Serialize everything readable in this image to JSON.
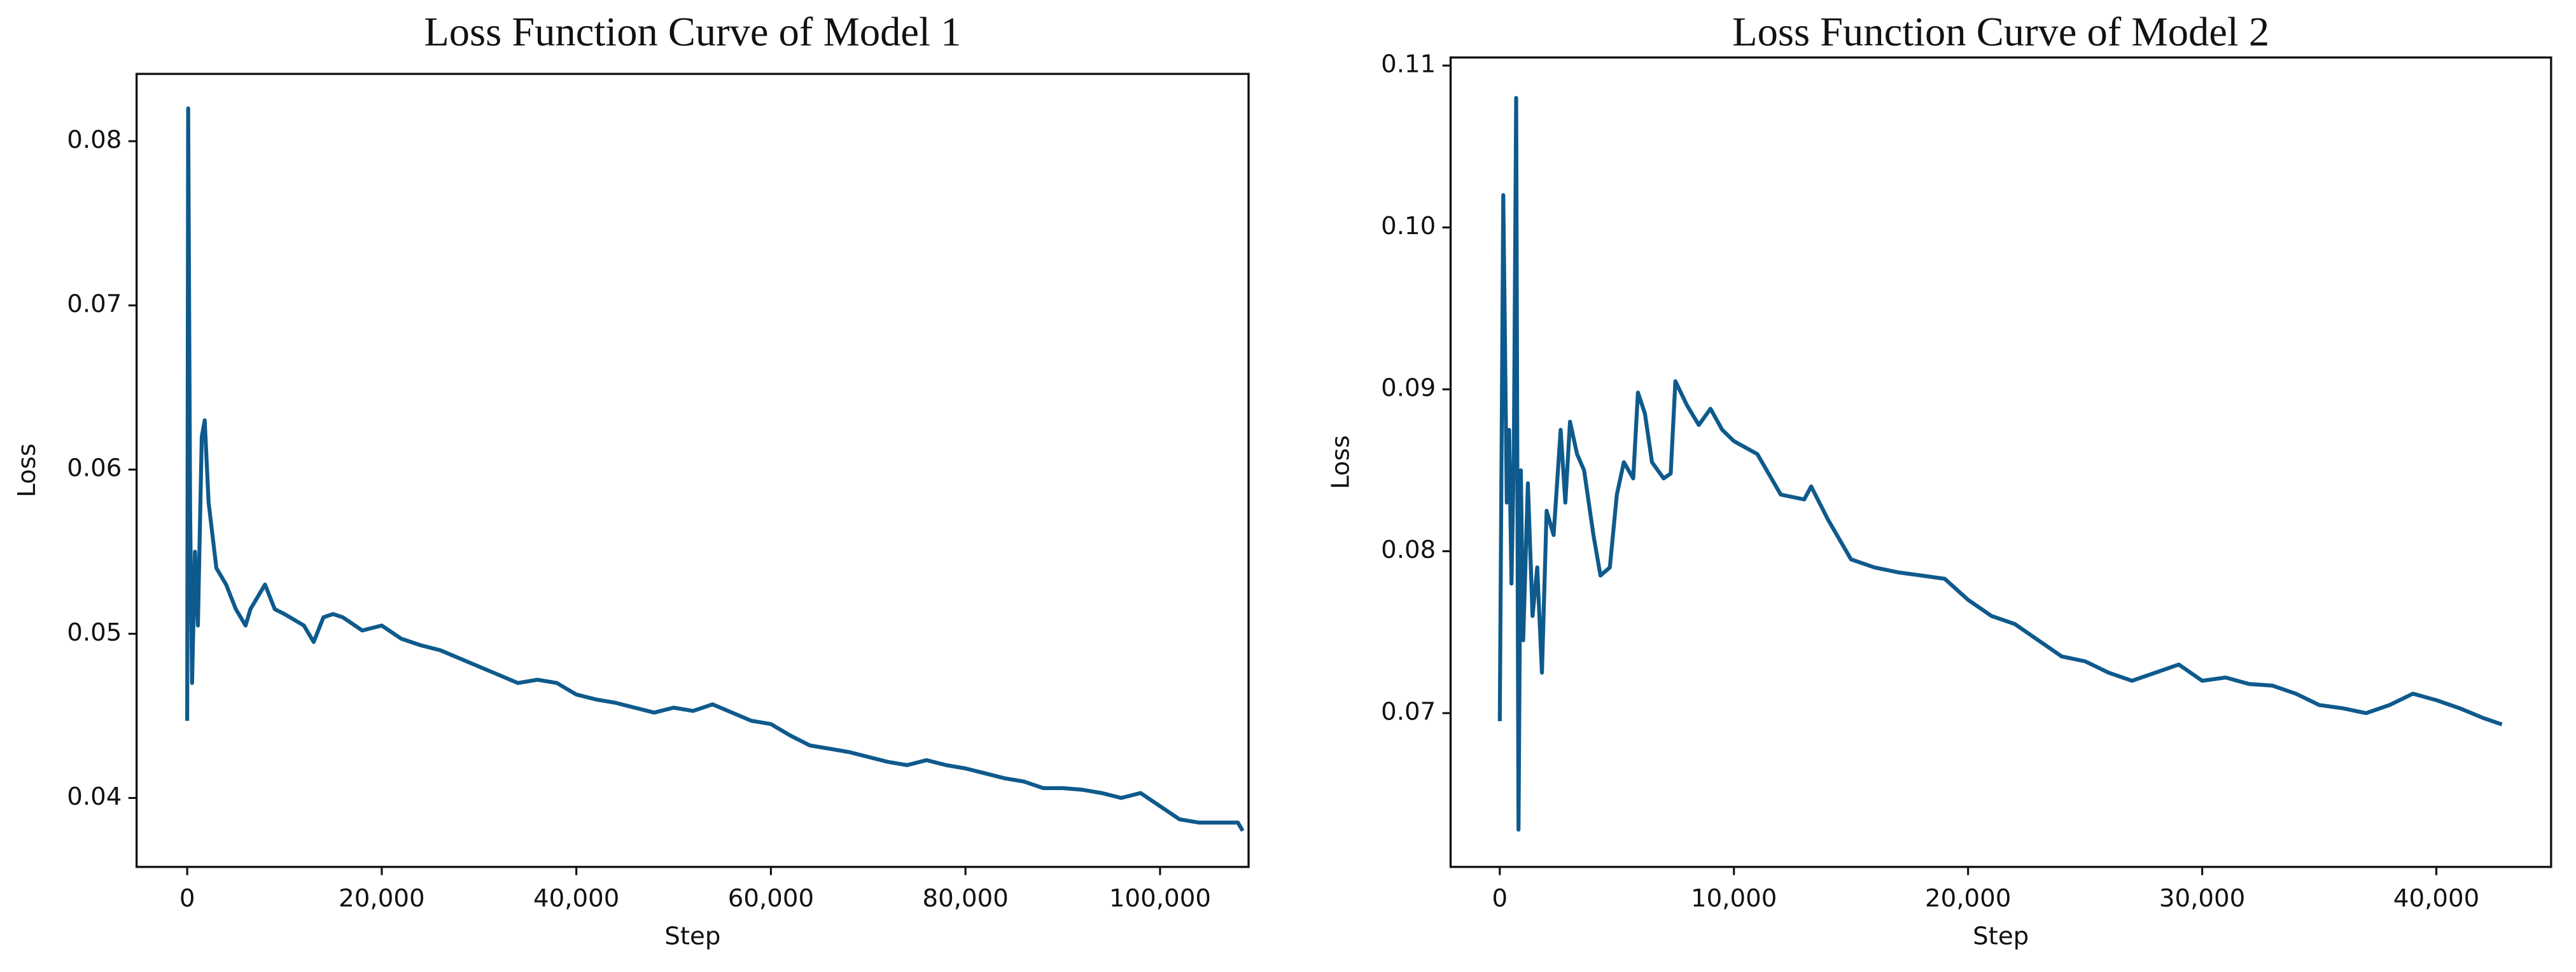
{
  "chart_data": [
    {
      "type": "line",
      "title": "Loss Function Curve of Model 1",
      "xlabel": "Step",
      "ylabel": "Loss",
      "color": "#0f5a8c",
      "x": [
        0,
        100,
        300,
        500,
        800,
        1100,
        1500,
        1800,
        2200,
        2600,
        3000,
        4000,
        5000,
        6000,
        6500,
        7500,
        8000,
        9000,
        10000,
        12000,
        13000,
        14000,
        15000,
        16000,
        18000,
        20000,
        22000,
        24000,
        26000,
        28000,
        30000,
        32000,
        34000,
        36000,
        38000,
        40000,
        42000,
        44000,
        46000,
        48000,
        50000,
        52000,
        54000,
        56000,
        58000,
        60000,
        62000,
        64000,
        66000,
        68000,
        70000,
        72000,
        74000,
        76000,
        78000,
        80000,
        82000,
        84000,
        86000,
        88000,
        90000,
        92000,
        94000,
        96000,
        98000,
        100000,
        102000,
        104000,
        106000,
        108000,
        108500
      ],
      "values": [
        0.0447,
        0.082,
        0.0575,
        0.047,
        0.055,
        0.0505,
        0.062,
        0.063,
        0.058,
        0.056,
        0.054,
        0.053,
        0.0515,
        0.0505,
        0.0515,
        0.0525,
        0.053,
        0.0515,
        0.0512,
        0.0505,
        0.0495,
        0.051,
        0.0512,
        0.051,
        0.0502,
        0.0505,
        0.0497,
        0.0493,
        0.049,
        0.0485,
        0.048,
        0.0475,
        0.047,
        0.0472,
        0.047,
        0.0463,
        0.046,
        0.0458,
        0.0455,
        0.0452,
        0.0455,
        0.0453,
        0.0457,
        0.0452,
        0.0447,
        0.0445,
        0.0438,
        0.0432,
        0.043,
        0.0428,
        0.0425,
        0.0422,
        0.042,
        0.0423,
        0.042,
        0.0418,
        0.0415,
        0.0412,
        0.041,
        0.0406,
        0.0406,
        0.0405,
        0.0403,
        0.04,
        0.0403,
        0.0395,
        0.0387,
        0.0385,
        0.0385,
        0.0385,
        0.038
      ],
      "xlim": [
        -5200,
        109100
      ],
      "ylim": [
        0.0358,
        0.0841
      ],
      "xticks": [
        0,
        {
          "value": 20000,
          "label": "20,000"
        },
        {
          "value": 40000,
          "label": "40,000"
        },
        {
          "value": 60000,
          "label": "60,000"
        },
        {
          "value": 80000,
          "label": "80,000"
        },
        {
          "value": 100000,
          "label": "100,000"
        }
      ],
      "yticks": [
        0.04,
        0.05,
        0.06,
        0.07,
        0.08
      ]
    },
    {
      "type": "line",
      "title": "Loss Function Curve of Model 2",
      "xlabel": "Step",
      "ylabel": "Loss",
      "color": "#0f5a8c",
      "x": [
        0,
        150,
        300,
        400,
        500,
        600,
        700,
        800,
        900,
        1000,
        1200,
        1400,
        1600,
        1800,
        2000,
        2300,
        2600,
        2800,
        3000,
        3300,
        3600,
        4000,
        4300,
        4700,
        5000,
        5300,
        5700,
        5900,
        6200,
        6500,
        7000,
        7300,
        7500,
        8000,
        8500,
        9000,
        9500,
        10000,
        11000,
        12000,
        13000,
        13300,
        14000,
        15000,
        16000,
        17000,
        18000,
        19000,
        20000,
        21000,
        22000,
        23000,
        24000,
        25000,
        26000,
        27000,
        28000,
        29000,
        30000,
        31000,
        32000,
        33000,
        34000,
        35000,
        36000,
        37000,
        38000,
        39000,
        40000,
        41000,
        42000,
        42800
      ],
      "values": [
        0.0695,
        0.102,
        0.083,
        0.0875,
        0.078,
        0.086,
        0.108,
        0.0628,
        0.085,
        0.0745,
        0.0842,
        0.076,
        0.079,
        0.0725,
        0.0825,
        0.081,
        0.0875,
        0.083,
        0.088,
        0.086,
        0.085,
        0.081,
        0.0785,
        0.079,
        0.0835,
        0.0855,
        0.0845,
        0.0898,
        0.0885,
        0.0855,
        0.0845,
        0.0848,
        0.0905,
        0.089,
        0.0878,
        0.0888,
        0.0875,
        0.0868,
        0.086,
        0.0835,
        0.0832,
        0.084,
        0.082,
        0.0795,
        0.079,
        0.0787,
        0.0785,
        0.0783,
        0.077,
        0.076,
        0.0755,
        0.0745,
        0.0735,
        0.0732,
        0.0725,
        0.072,
        0.0725,
        0.073,
        0.072,
        0.0722,
        0.0718,
        0.0717,
        0.0712,
        0.0705,
        0.0703,
        0.07,
        0.0705,
        0.0712,
        0.0708,
        0.0703,
        0.0697,
        0.0693
      ],
      "xlim": [
        -2100,
        44900
      ],
      "ylim": [
        0.0605,
        0.1105
      ],
      "xticks": [
        0,
        {
          "value": 10000,
          "label": "10,000"
        },
        {
          "value": 20000,
          "label": "20,000"
        },
        {
          "value": 30000,
          "label": "30,000"
        },
        {
          "value": 40000,
          "label": "40,000"
        }
      ],
      "yticks": [
        0.07,
        0.08,
        0.09,
        {
          "value": 0.1,
          "label": "0.10"
        },
        0.11
      ]
    }
  ]
}
